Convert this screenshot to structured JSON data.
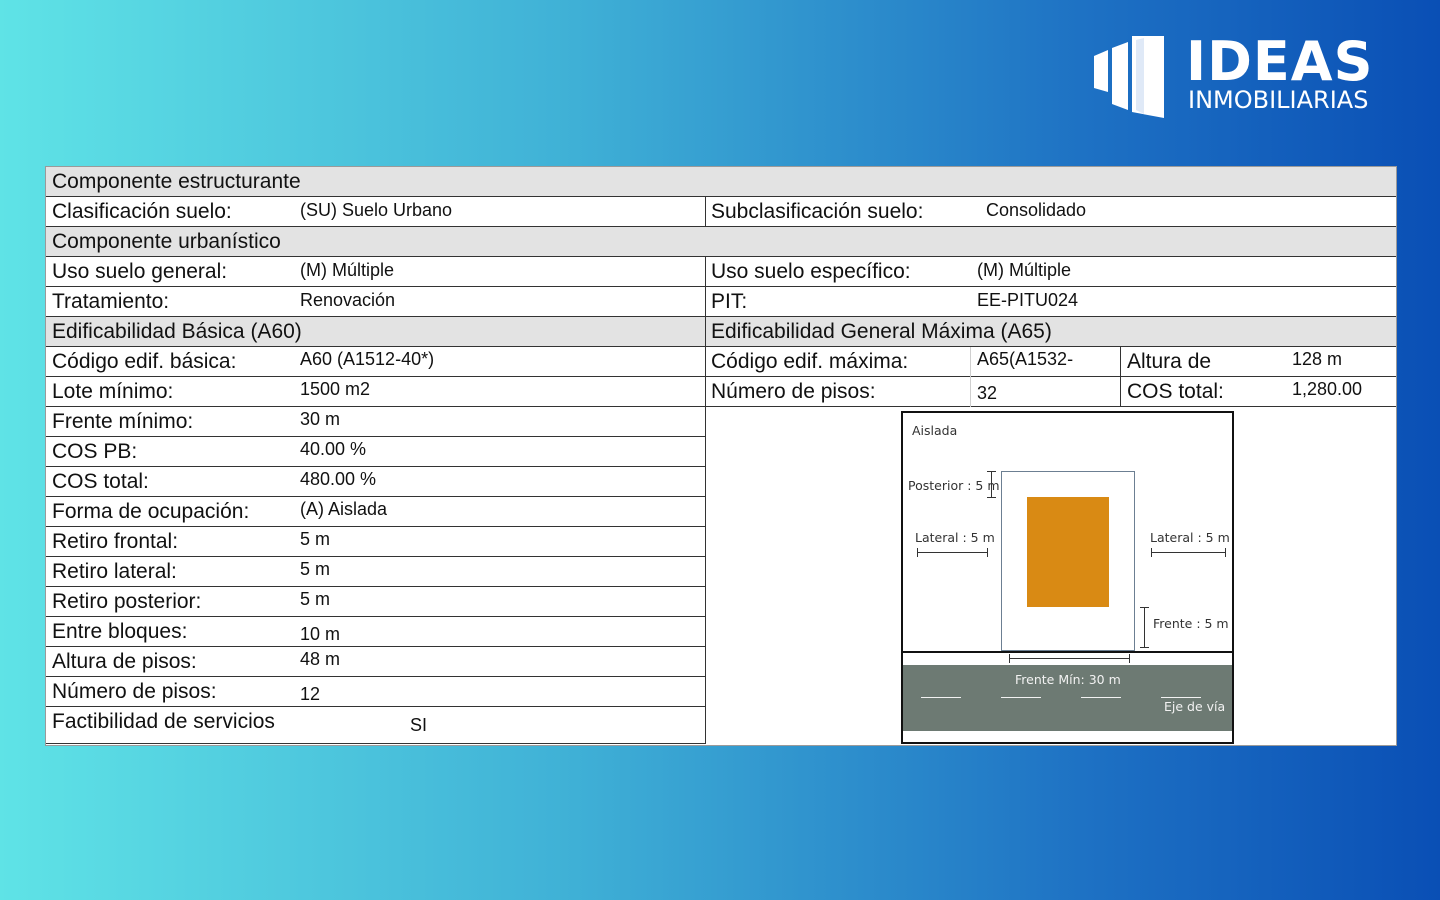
{
  "logo": {
    "brand": "IDEAS",
    "sub": "INMOBILIARIAS",
    "icon": "building-icon"
  },
  "sheet": {
    "s1": {
      "title": "Componente  estructurante"
    },
    "r1": {
      "l1": "Clasificación suelo:",
      "v1": "(SU) Suelo Urbano",
      "l2": "Subclasificación suelo:",
      "v2": "Consolidado"
    },
    "s2": {
      "title": "Componente  urbanístico"
    },
    "r2": {
      "l1": "Uso suelo general:",
      "v1": "(M) Múltiple",
      "l2": "Uso suelo específico:",
      "v2": "(M) Múltiple"
    },
    "r3": {
      "l1": "Tratamiento:",
      "v1": "Renovación",
      "l2": "PIT:",
      "v2": "EE-PITU024"
    },
    "s3": {
      "left": "Edificabilidad Básica (A60)",
      "right": "Edificabilidad General Máxima (A65)"
    },
    "r4": {
      "l1": "Código edif. básica:",
      "v1": "A60 (A1512-40*)",
      "l2": "Código edif. máxima:",
      "v2": "A65(A1532-",
      "l3": "Altura de",
      "v3": "128 m"
    },
    "r5": {
      "l1": "Lote mínimo:",
      "v1": "1500 m2",
      "l2": "Número de pisos:",
      "v2": "32",
      "l3": "COS total:",
      "v3": "1,280.00"
    },
    "rows": [
      {
        "label": "Frente mínimo:",
        "value": "30 m"
      },
      {
        "label": "COS PB:",
        "value": "40.00 %"
      },
      {
        "label": "COS total:",
        "value": "480.00 %"
      },
      {
        "label": "Forma de ocupación:",
        "value": "(A) Aislada"
      },
      {
        "label": "Retiro frontal:",
        "value": "5 m"
      },
      {
        "label": "Retiro lateral:",
        "value": "5 m"
      },
      {
        "label": "Retiro posterior:",
        "value": "5 m"
      },
      {
        "label": "Entre bloques:",
        "value": "10 m"
      },
      {
        "label": "Altura de pisos:",
        "value": "48 m"
      },
      {
        "label": "Número de pisos:",
        "value": "12"
      },
      {
        "label": "Factibilidad de servicios",
        "value": "SI"
      }
    ]
  },
  "diagram": {
    "title": "Aislada",
    "posterior": "Posterior : 5 m",
    "lateral_left": "Lateral : 5 m",
    "lateral_right": "Lateral : 5 m",
    "frente": "Frente : 5 m",
    "frente_min": "Frente Mín: 30 m",
    "eje": "Eje de vía",
    "building_color": "#d98a14",
    "road_color": "#6d7a73"
  }
}
